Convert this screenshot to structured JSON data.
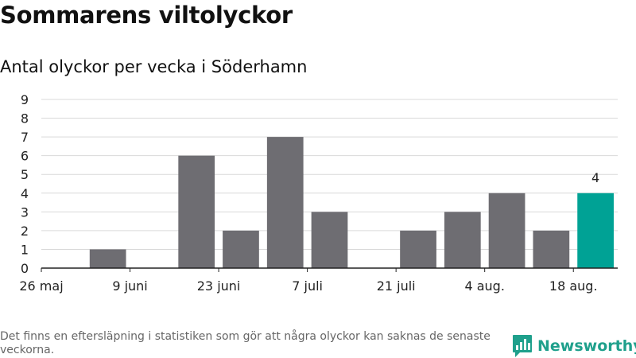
{
  "chart_data": {
    "type": "bar",
    "title": "Sommarens viltolyckor",
    "subtitle": "Antal olyckor per vecka i Söderhamn",
    "xlabel": "",
    "ylabel": "",
    "ylim": [
      0,
      9
    ],
    "yticks": [
      0,
      1,
      2,
      3,
      4,
      5,
      6,
      7,
      8,
      9
    ],
    "weeks": [
      "2019-05-26",
      "2019-06-02",
      "2019-06-09",
      "2019-06-16",
      "2019-06-23",
      "2019-06-30",
      "2019-07-07",
      "2019-07-14",
      "2019-07-21",
      "2019-07-28",
      "2019-08-04",
      "2019-08-11",
      "2019-08-18"
    ],
    "values": [
      0,
      1,
      0,
      6,
      2,
      7,
      3,
      0,
      2,
      3,
      4,
      2,
      4
    ],
    "xtick_labels": [
      {
        "week": 0,
        "label": "26 maj"
      },
      {
        "week": 2,
        "label": "9 juni"
      },
      {
        "week": 4,
        "label": "23 juni"
      },
      {
        "week": 6,
        "label": "7 juli"
      },
      {
        "week": 8,
        "label": "21 juli"
      },
      {
        "week": 10,
        "label": "4 aug."
      },
      {
        "week": 12,
        "label": "18 aug."
      }
    ],
    "highlight_week": 12,
    "highlight_label": "4",
    "grid": true,
    "colors": {
      "bar": "#6e6d72",
      "highlight": "#00a295",
      "grid": "#d9d9d9",
      "axis": "#222222"
    }
  },
  "footer": {
    "note": "Det finns en eftersläpning i statistiken som gör att några olyckor kan saknas de senaste veckorna.",
    "brand": "Newsworthy",
    "brand_icon": "bar-chart-speech-icon",
    "brand_color": "#1fa08c"
  }
}
